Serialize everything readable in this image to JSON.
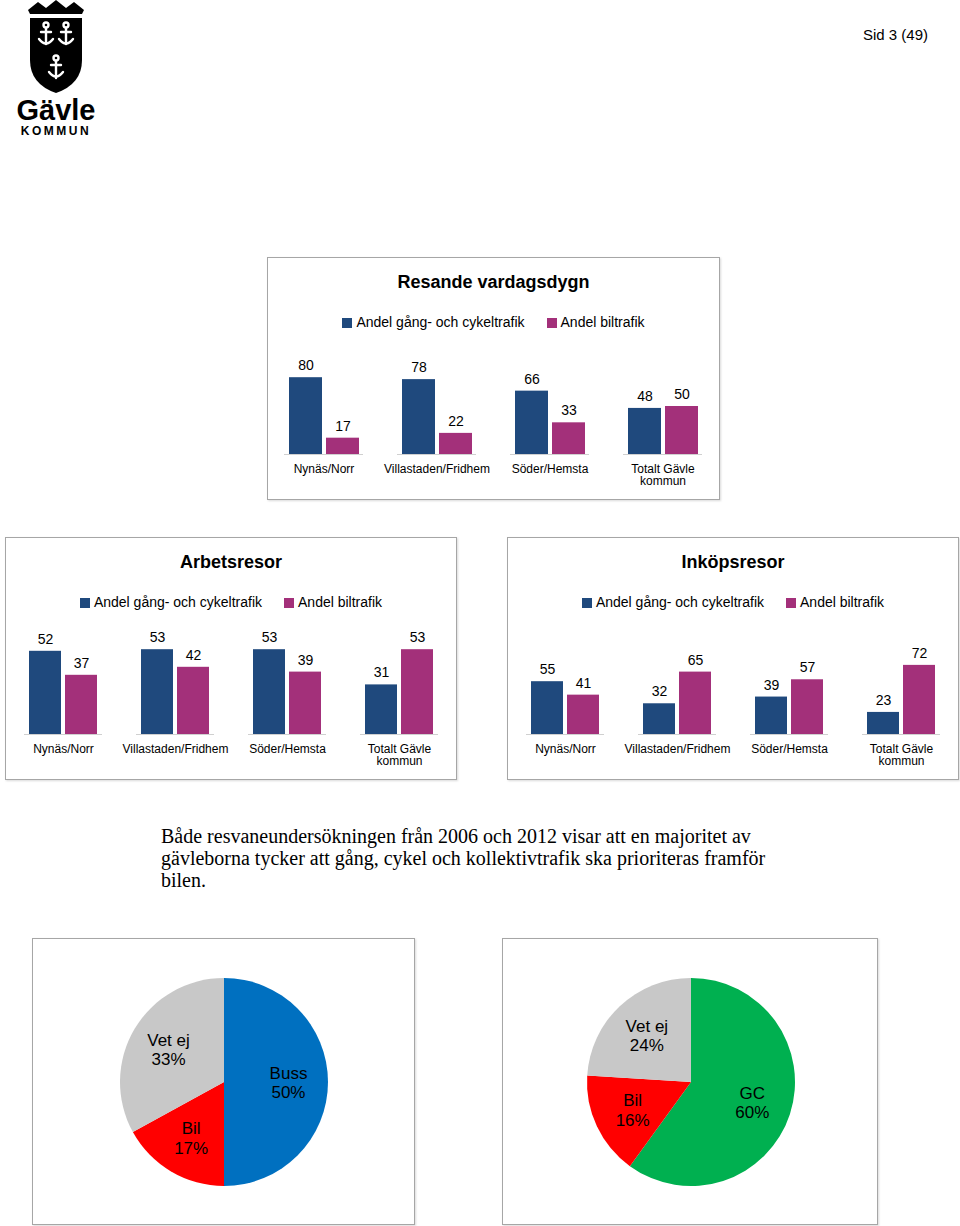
{
  "page": {
    "page_number": "Sid 3 (49)",
    "logo": {
      "name": "Gävle",
      "subtitle": "KOMMUN"
    },
    "text": [
      "Både resvaneundersökningen från 2006 och 2012 visar att en majoritet av",
      "gävleborna tycker att gång, cykel och kollektivtrafik ska prioriteras framför",
      "bilen."
    ]
  },
  "chart_data": [
    {
      "type": "bar",
      "title": "Resande vardagsdygn",
      "categories": [
        "Nynäs/Norr",
        "Villastaden/Fridhem",
        "Söder/Hemsta",
        "Totalt Gävle kommun"
      ],
      "series": [
        {
          "name": "Andel gång- och cykeltrafik",
          "color": "#1f497d",
          "values": [
            80,
            78,
            66,
            48
          ]
        },
        {
          "name": "Andel biltrafik",
          "color": "#a3307a",
          "values": [
            17,
            22,
            33,
            50
          ]
        }
      ],
      "ylim": [
        0,
        100
      ],
      "data_labels": true,
      "tick_labels": "x",
      "legend": "top"
    },
    {
      "type": "bar",
      "title": "Arbetsresor",
      "categories": [
        "Nynäs/Norr",
        "Villastaden/Fridhem",
        "Söder/Hemsta",
        "Totalt Gävle kommun"
      ],
      "series": [
        {
          "name": "Andel gång- och cykeltrafik",
          "color": "#1f497d",
          "values": [
            52,
            53,
            53,
            31
          ]
        },
        {
          "name": "Andel biltrafik",
          "color": "#a3307a",
          "values": [
            37,
            42,
            39,
            53
          ]
        }
      ],
      "ylim": [
        0,
        60
      ],
      "data_labels": true,
      "tick_labels": "x",
      "legend": "top"
    },
    {
      "type": "bar",
      "title": "Inköpsresor",
      "categories": [
        "Nynäs/Norr",
        "Villastaden/Fridhem",
        "Söder/Hemsta",
        "Totalt Gävle kommun"
      ],
      "series": [
        {
          "name": "Andel gång- och cykeltrafik",
          "color": "#1f497d",
          "values": [
            55,
            32,
            39,
            23
          ]
        },
        {
          "name": "Andel biltrafik",
          "color": "#a3307a",
          "values": [
            41,
            65,
            57,
            72
          ]
        }
      ],
      "ylim": [
        0,
        100
      ],
      "data_labels": true,
      "tick_labels": "x",
      "legend": "top"
    },
    {
      "type": "pie",
      "categories": [
        "Buss",
        "Bil",
        "Vet ej"
      ],
      "values": [
        50,
        17,
        33
      ],
      "value_labels": [
        "50%",
        "17%",
        "33%"
      ],
      "colors": [
        "#0070c0",
        "#ff0000",
        "#c8c8c8"
      ],
      "data_labels": true
    },
    {
      "type": "pie",
      "categories": [
        "GC",
        "Bil",
        "Vet ej"
      ],
      "values": [
        60,
        16,
        24
      ],
      "value_labels": [
        "60%",
        "16%",
        "24%"
      ],
      "colors": [
        "#00b050",
        "#ff0000",
        "#c8c8c8"
      ],
      "data_labels": true
    }
  ]
}
